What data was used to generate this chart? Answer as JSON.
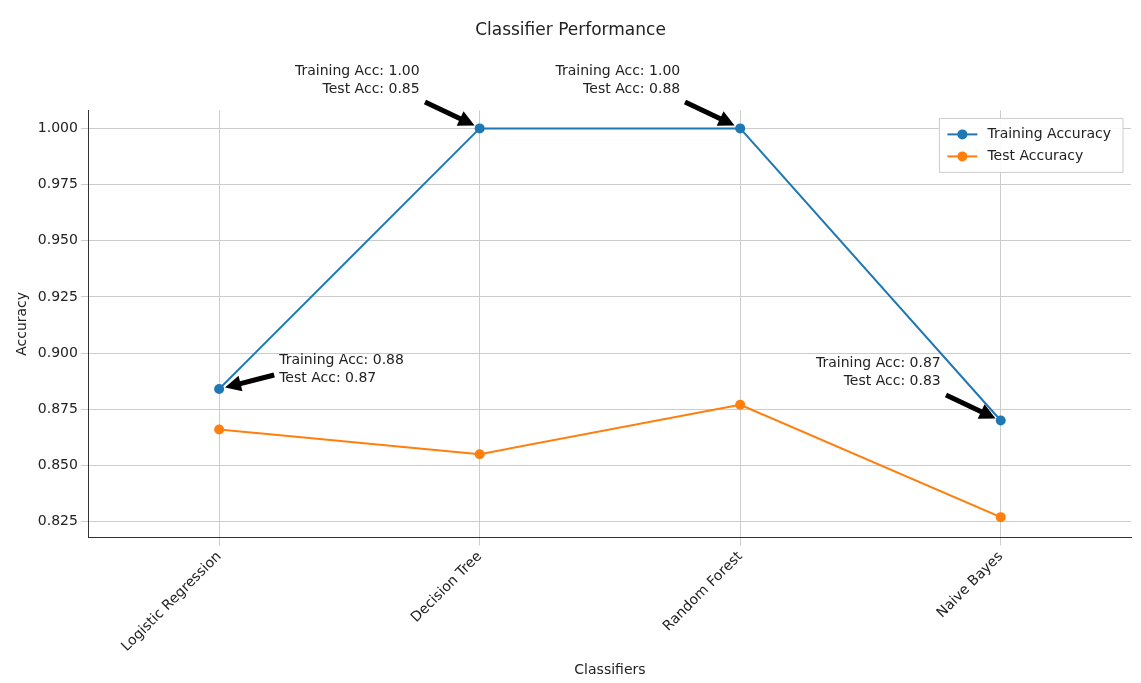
{
  "chart_data": {
    "type": "line",
    "title": "Classifier Performance",
    "xlabel": "Classifiers",
    "ylabel": "Accuracy",
    "categories": [
      "Logistic Regression",
      "Decision Tree",
      "Random Forest",
      "Naive Bayes"
    ],
    "series": [
      {
        "name": "Training Accuracy",
        "color": "#1f77b4",
        "values": [
          0.884,
          1.0,
          1.0,
          0.87
        ]
      },
      {
        "name": "Test Accuracy",
        "color": "#ff7f0e",
        "values": [
          0.866,
          0.855,
          0.877,
          0.827
        ]
      }
    ],
    "ylim": [
      0.818,
      1.008
    ],
    "yticks": [
      {
        "value": 0.825,
        "label": "0.825"
      },
      {
        "value": 0.85,
        "label": "0.850"
      },
      {
        "value": 0.875,
        "label": "0.875"
      },
      {
        "value": 0.9,
        "label": "0.900"
      },
      {
        "value": 0.925,
        "label": "0.925"
      },
      {
        "value": 0.95,
        "label": "0.950"
      },
      {
        "value": 0.975,
        "label": "0.975"
      },
      {
        "value": 1.0,
        "label": "1.000"
      }
    ],
    "annotations": [
      "Training Acc: 0.88\nTest Acc: 0.87",
      "Training Acc: 1.00\nTest Acc: 0.85",
      "Training Acc: 1.00\nTest Acc: 0.88",
      "Training Acc: 0.87\nTest Acc: 0.83"
    ],
    "grid": true,
    "legend": "top right",
    "marker": "circle",
    "line_style": "solid"
  }
}
